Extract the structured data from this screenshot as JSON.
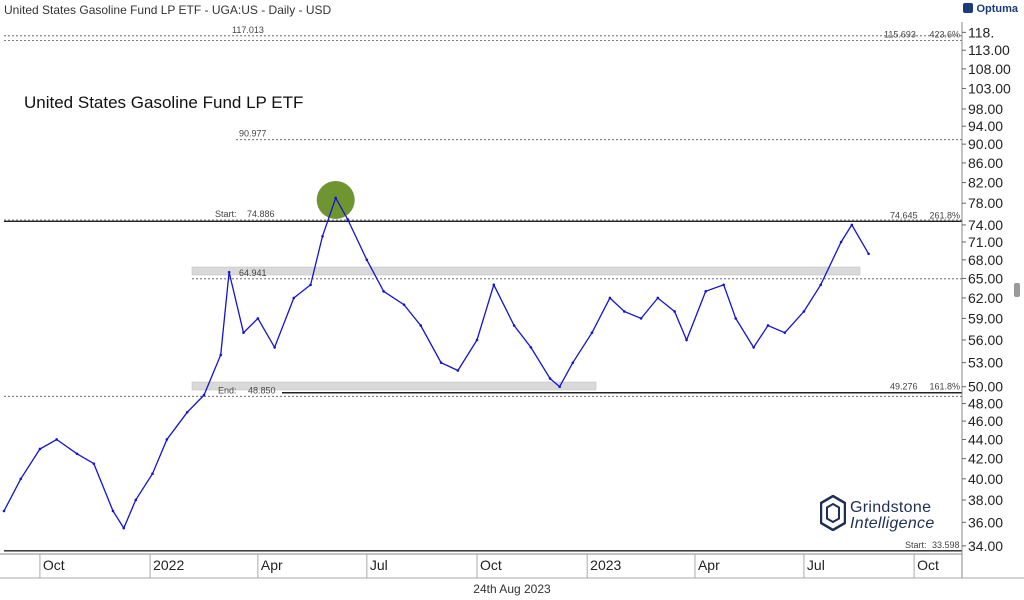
{
  "header": {
    "title": "United States Gasoline Fund LP ETF - UGA:US - Daily - USD",
    "brand": "Optuma"
  },
  "logo": {
    "line1": "Grindstone",
    "line2": "Intelligence"
  },
  "footer": {
    "date": "24th Aug 2023"
  },
  "chart_data": {
    "type": "line",
    "title": "United States Gasoline Fund LP ETF",
    "xlabel": "",
    "ylabel": "",
    "y_scale": "log",
    "ylim": [
      33.5,
      121
    ],
    "y_ticks": [
      34,
      36,
      38,
      40,
      42,
      44,
      46,
      48,
      50,
      53,
      56,
      59,
      62,
      65,
      68,
      71,
      74,
      78,
      82,
      86,
      90,
      94,
      98,
      103,
      108,
      113,
      118
    ],
    "y_tick_labels": [
      "34.00",
      "36.00",
      "38.00",
      "40.00",
      "42.00",
      "44.00",
      "46.00",
      "48.00",
      "50.00",
      "53.00",
      "56.00",
      "59.00",
      "62.00",
      "65.00",
      "68.00",
      "71.00",
      "74.00",
      "78.00",
      "82.00",
      "86.00",
      "90.00",
      "94.00",
      "98.00",
      "103.00",
      "108.00",
      "113.00",
      "118."
    ],
    "x_ticks": [
      "Oct",
      "2022",
      "Apr",
      "Jul",
      "Oct",
      "2023",
      "Apr",
      "Jul",
      "Oct"
    ],
    "x_range": [
      "2021-09-01",
      "2023-11-10"
    ],
    "x_tick_dates": [
      "2021-10-01",
      "2022-01-01",
      "2022-04-01",
      "2022-07-01",
      "2022-10-01",
      "2023-01-01",
      "2023-04-01",
      "2023-07-01",
      "2023-10-01"
    ],
    "grid": false,
    "series": [
      {
        "color": "#1414d2",
        "x": [
          "2021-09-01",
          "2021-09-15",
          "2021-10-01",
          "2021-10-15",
          "2021-11-01",
          "2021-11-15",
          "2021-12-01",
          "2021-12-10",
          "2021-12-20",
          "2022-01-03",
          "2022-01-15",
          "2022-02-01",
          "2022-02-15",
          "2022-03-01",
          "2022-03-08",
          "2022-03-20",
          "2022-04-01",
          "2022-04-15",
          "2022-05-01",
          "2022-05-15",
          "2022-05-25",
          "2022-06-05",
          "2022-06-15",
          "2022-07-01",
          "2022-07-15",
          "2022-08-01",
          "2022-08-15",
          "2022-09-01",
          "2022-09-15",
          "2022-10-01",
          "2022-10-15",
          "2022-11-01",
          "2022-11-15",
          "2022-12-01",
          "2022-12-09",
          "2022-12-20",
          "2023-01-05",
          "2023-01-20",
          "2023-02-01",
          "2023-02-15",
          "2023-03-01",
          "2023-03-15",
          "2023-03-25",
          "2023-04-10",
          "2023-04-25",
          "2023-05-05",
          "2023-05-20",
          "2023-06-01",
          "2023-06-15",
          "2023-07-01",
          "2023-07-15",
          "2023-08-01",
          "2023-08-10",
          "2023-08-24"
        ],
        "values": [
          37,
          40,
          43,
          44,
          42.5,
          41.5,
          37,
          35.5,
          38,
          40.5,
          44,
          47,
          49,
          54,
          66,
          57,
          59,
          55,
          62,
          64,
          72,
          79,
          75,
          68,
          63,
          61,
          58,
          53,
          52,
          56,
          64,
          58,
          55,
          51,
          50,
          53,
          57,
          62,
          60,
          59,
          62,
          60,
          56,
          63,
          64,
          59,
          55,
          58,
          57,
          60,
          64,
          71,
          74,
          69
        ]
      }
    ],
    "annotations": [
      {
        "label": "117.013",
        "value": 117.013
      },
      {
        "label": "115.693",
        "value": 115.693,
        "extra": "423.6%"
      },
      {
        "label": "90.977",
        "value": 90.977
      },
      {
        "label": "Start:",
        "value": 74.886,
        "value_label": "74.886"
      },
      {
        "label": "74.645",
        "value": 74.645,
        "extra": "261.8%"
      },
      {
        "label": "64.941",
        "value": 64.941
      },
      {
        "label": "End:",
        "value": 48.85,
        "value_label": "48.850"
      },
      {
        "label": "49.276",
        "value": 49.276,
        "extra": "161.8%"
      },
      {
        "label": "Start:",
        "value": 33.598,
        "value_label": "33.598"
      }
    ]
  }
}
